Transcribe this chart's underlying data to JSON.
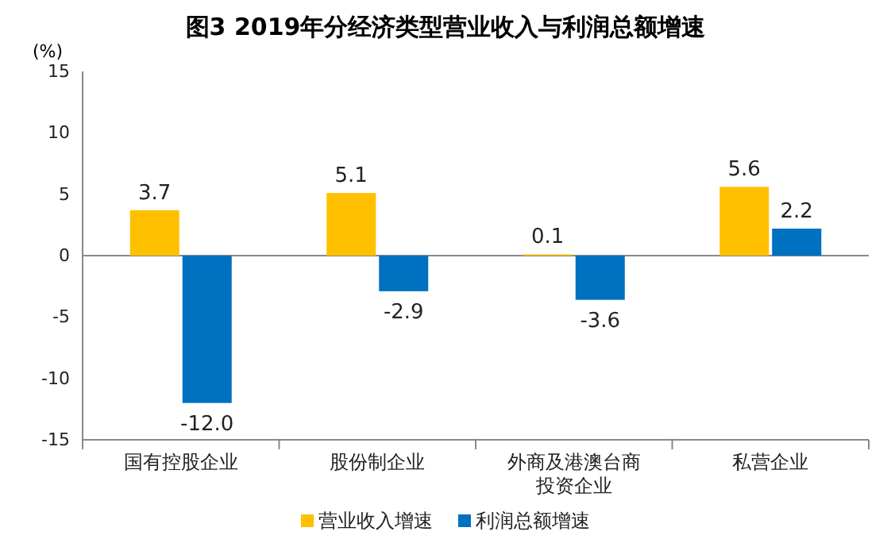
{
  "chart_data": {
    "type": "bar",
    "title": "图3 2019年分经济类型营业收入与利润总额增速",
    "ylabel": "(%)",
    "categories": [
      "国有控股企业",
      "股份制企业",
      "外商及港澳台商投资企业",
      "私营企业"
    ],
    "series": [
      {
        "name": "营业收入增速",
        "color": "#ffc000",
        "values": [
          3.7,
          5.1,
          0.1,
          5.6
        ],
        "value_labels": [
          "3.7",
          "5.1",
          "0.1",
          "5.6"
        ]
      },
      {
        "name": "利润总额增速",
        "color": "#0070c0",
        "values": [
          -12.0,
          -2.9,
          -3.6,
          2.2
        ],
        "value_labels": [
          "-12.0",
          "-2.9",
          "-3.6",
          "2.2"
        ]
      }
    ],
    "ylim": [
      -15,
      15
    ],
    "yticks": [
      -15,
      -10,
      -5,
      0,
      5,
      10,
      15
    ],
    "legend": "bottom"
  }
}
